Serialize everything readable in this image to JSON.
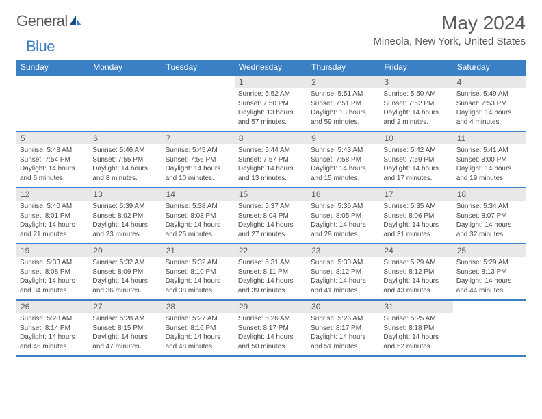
{
  "brand": {
    "text1": "General",
    "text2": "Blue"
  },
  "title": "May 2024",
  "location": "Mineola, New York, United States",
  "colors": {
    "header_bg": "#3b7fc4",
    "header_fg": "#ffffff",
    "daynum_bg": "#e8e8e8",
    "border": "#3b7fc4",
    "text": "#4a4a4a",
    "title": "#5a5a5a"
  },
  "typography": {
    "title_fontsize": 28,
    "location_fontsize": 15,
    "dayheader_fontsize": 12,
    "daynum_fontsize": 12,
    "body_fontsize": 10
  },
  "columns": [
    "Sunday",
    "Monday",
    "Tuesday",
    "Wednesday",
    "Thursday",
    "Friday",
    "Saturday"
  ],
  "weeks": [
    [
      {
        "n": "",
        "sunrise": "",
        "sunset": "",
        "daylight": ""
      },
      {
        "n": "",
        "sunrise": "",
        "sunset": "",
        "daylight": ""
      },
      {
        "n": "",
        "sunrise": "",
        "sunset": "",
        "daylight": ""
      },
      {
        "n": "1",
        "sunrise": "Sunrise: 5:52 AM",
        "sunset": "Sunset: 7:50 PM",
        "daylight": "Daylight: 13 hours and 57 minutes."
      },
      {
        "n": "2",
        "sunrise": "Sunrise: 5:51 AM",
        "sunset": "Sunset: 7:51 PM",
        "daylight": "Daylight: 13 hours and 59 minutes."
      },
      {
        "n": "3",
        "sunrise": "Sunrise: 5:50 AM",
        "sunset": "Sunset: 7:52 PM",
        "daylight": "Daylight: 14 hours and 2 minutes."
      },
      {
        "n": "4",
        "sunrise": "Sunrise: 5:49 AM",
        "sunset": "Sunset: 7:53 PM",
        "daylight": "Daylight: 14 hours and 4 minutes."
      }
    ],
    [
      {
        "n": "5",
        "sunrise": "Sunrise: 5:48 AM",
        "sunset": "Sunset: 7:54 PM",
        "daylight": "Daylight: 14 hours and 6 minutes."
      },
      {
        "n": "6",
        "sunrise": "Sunrise: 5:46 AM",
        "sunset": "Sunset: 7:55 PM",
        "daylight": "Daylight: 14 hours and 8 minutes."
      },
      {
        "n": "7",
        "sunrise": "Sunrise: 5:45 AM",
        "sunset": "Sunset: 7:56 PM",
        "daylight": "Daylight: 14 hours and 10 minutes."
      },
      {
        "n": "8",
        "sunrise": "Sunrise: 5:44 AM",
        "sunset": "Sunset: 7:57 PM",
        "daylight": "Daylight: 14 hours and 13 minutes."
      },
      {
        "n": "9",
        "sunrise": "Sunrise: 5:43 AM",
        "sunset": "Sunset: 7:58 PM",
        "daylight": "Daylight: 14 hours and 15 minutes."
      },
      {
        "n": "10",
        "sunrise": "Sunrise: 5:42 AM",
        "sunset": "Sunset: 7:59 PM",
        "daylight": "Daylight: 14 hours and 17 minutes."
      },
      {
        "n": "11",
        "sunrise": "Sunrise: 5:41 AM",
        "sunset": "Sunset: 8:00 PM",
        "daylight": "Daylight: 14 hours and 19 minutes."
      }
    ],
    [
      {
        "n": "12",
        "sunrise": "Sunrise: 5:40 AM",
        "sunset": "Sunset: 8:01 PM",
        "daylight": "Daylight: 14 hours and 21 minutes."
      },
      {
        "n": "13",
        "sunrise": "Sunrise: 5:39 AM",
        "sunset": "Sunset: 8:02 PM",
        "daylight": "Daylight: 14 hours and 23 minutes."
      },
      {
        "n": "14",
        "sunrise": "Sunrise: 5:38 AM",
        "sunset": "Sunset: 8:03 PM",
        "daylight": "Daylight: 14 hours and 25 minutes."
      },
      {
        "n": "15",
        "sunrise": "Sunrise: 5:37 AM",
        "sunset": "Sunset: 8:04 PM",
        "daylight": "Daylight: 14 hours and 27 minutes."
      },
      {
        "n": "16",
        "sunrise": "Sunrise: 5:36 AM",
        "sunset": "Sunset: 8:05 PM",
        "daylight": "Daylight: 14 hours and 29 minutes."
      },
      {
        "n": "17",
        "sunrise": "Sunrise: 5:35 AM",
        "sunset": "Sunset: 8:06 PM",
        "daylight": "Daylight: 14 hours and 31 minutes."
      },
      {
        "n": "18",
        "sunrise": "Sunrise: 5:34 AM",
        "sunset": "Sunset: 8:07 PM",
        "daylight": "Daylight: 14 hours and 32 minutes."
      }
    ],
    [
      {
        "n": "19",
        "sunrise": "Sunrise: 5:33 AM",
        "sunset": "Sunset: 8:08 PM",
        "daylight": "Daylight: 14 hours and 34 minutes."
      },
      {
        "n": "20",
        "sunrise": "Sunrise: 5:32 AM",
        "sunset": "Sunset: 8:09 PM",
        "daylight": "Daylight: 14 hours and 36 minutes."
      },
      {
        "n": "21",
        "sunrise": "Sunrise: 5:32 AM",
        "sunset": "Sunset: 8:10 PM",
        "daylight": "Daylight: 14 hours and 38 minutes."
      },
      {
        "n": "22",
        "sunrise": "Sunrise: 5:31 AM",
        "sunset": "Sunset: 8:11 PM",
        "daylight": "Daylight: 14 hours and 39 minutes."
      },
      {
        "n": "23",
        "sunrise": "Sunrise: 5:30 AM",
        "sunset": "Sunset: 8:12 PM",
        "daylight": "Daylight: 14 hours and 41 minutes."
      },
      {
        "n": "24",
        "sunrise": "Sunrise: 5:29 AM",
        "sunset": "Sunset: 8:12 PM",
        "daylight": "Daylight: 14 hours and 43 minutes."
      },
      {
        "n": "25",
        "sunrise": "Sunrise: 5:29 AM",
        "sunset": "Sunset: 8:13 PM",
        "daylight": "Daylight: 14 hours and 44 minutes."
      }
    ],
    [
      {
        "n": "26",
        "sunrise": "Sunrise: 5:28 AM",
        "sunset": "Sunset: 8:14 PM",
        "daylight": "Daylight: 14 hours and 46 minutes."
      },
      {
        "n": "27",
        "sunrise": "Sunrise: 5:28 AM",
        "sunset": "Sunset: 8:15 PM",
        "daylight": "Daylight: 14 hours and 47 minutes."
      },
      {
        "n": "28",
        "sunrise": "Sunrise: 5:27 AM",
        "sunset": "Sunset: 8:16 PM",
        "daylight": "Daylight: 14 hours and 48 minutes."
      },
      {
        "n": "29",
        "sunrise": "Sunrise: 5:26 AM",
        "sunset": "Sunset: 8:17 PM",
        "daylight": "Daylight: 14 hours and 50 minutes."
      },
      {
        "n": "30",
        "sunrise": "Sunrise: 5:26 AM",
        "sunset": "Sunset: 8:17 PM",
        "daylight": "Daylight: 14 hours and 51 minutes."
      },
      {
        "n": "31",
        "sunrise": "Sunrise: 5:25 AM",
        "sunset": "Sunset: 8:18 PM",
        "daylight": "Daylight: 14 hours and 52 minutes."
      },
      {
        "n": "",
        "sunrise": "",
        "sunset": "",
        "daylight": ""
      }
    ]
  ]
}
